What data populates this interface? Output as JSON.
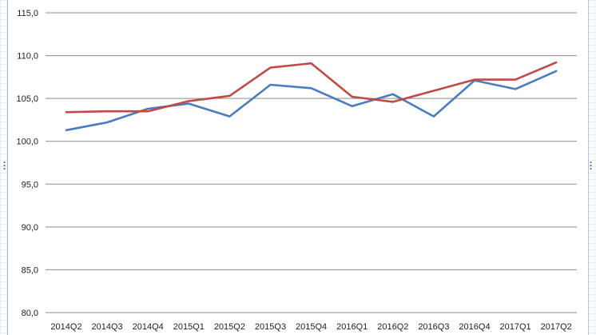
{
  "chart_data": {
    "type": "line",
    "title": "",
    "xlabel": "",
    "ylabel": "",
    "categories": [
      "2014Q2",
      "2014Q3",
      "2014Q4",
      "2015Q1",
      "2015Q2",
      "2015Q3",
      "2015Q4",
      "2016Q1",
      "2016Q2",
      "2016Q3",
      "2016Q4",
      "2017Q1",
      "2017Q2"
    ],
    "y_ticks": [
      "80,0",
      "85,0",
      "90,0",
      "95,0",
      "100,0",
      "105,0",
      "110,0",
      "115,0"
    ],
    "ylim": [
      80,
      115
    ],
    "grid": true,
    "legend": "none",
    "series": [
      {
        "color": "#4a7ebb",
        "values": [
          101.3,
          102.2,
          103.8,
          104.4,
          102.9,
          106.6,
          106.2,
          104.1,
          105.5,
          102.9,
          107.1,
          106.1,
          108.2
        ]
      },
      {
        "color": "#be4b48",
        "values": [
          103.4,
          103.5,
          103.5,
          104.7,
          105.3,
          108.6,
          109.1,
          105.2,
          104.6,
          105.9,
          107.2,
          107.2,
          109.2
        ]
      }
    ]
  }
}
